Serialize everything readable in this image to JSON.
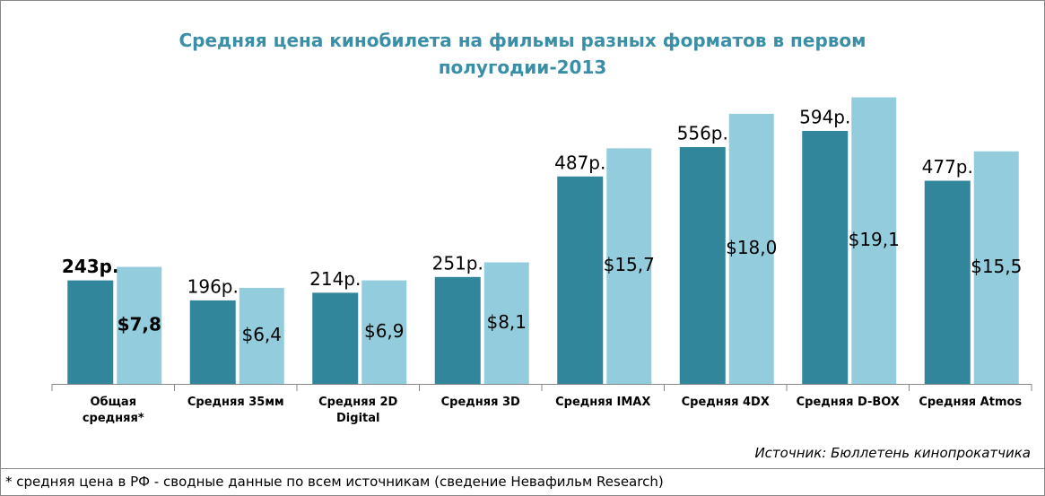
{
  "chart_data": {
    "type": "bar",
    "title": "Средняя цена кинобилета на фильмы разных форматов в первом полугодии-2013",
    "categories": [
      "Общая средняя*",
      "Средняя 35мм",
      "Средняя 2D Digital",
      "Средняя 3D",
      "Средняя IMAX",
      "Средняя 4DX",
      "Средняя D-BOX",
      "Средняя Atmos"
    ],
    "series": [
      {
        "color": "#31869b",
        "values": [
          243,
          196,
          214,
          251,
          487,
          556,
          594,
          477
        ],
        "value_labels": [
          "243р.",
          "196р.",
          "214р.",
          "251р.",
          "487р.",
          "556р.",
          "594р.",
          "477р."
        ]
      },
      {
        "color": "#93cddd",
        "axis": "y2",
        "values": [
          7.8,
          6.4,
          6.9,
          8.1,
          15.7,
          18.0,
          19.1,
          15.5
        ],
        "value_labels": [
          "$7,8",
          "$6,4",
          "$6,9",
          "$8,1",
          "$15,7",
          "$18,0",
          "$19,1",
          "$15,5"
        ]
      }
    ],
    "ylim": [
      0,
      775
    ],
    "y2lim": [
      0,
      22
    ],
    "source": "Источник: Бюллетень кинопрокатчика",
    "footnote": "* средняя цена в РФ - сводные данные по всем источникам (сведение Невафильм Research)"
  }
}
